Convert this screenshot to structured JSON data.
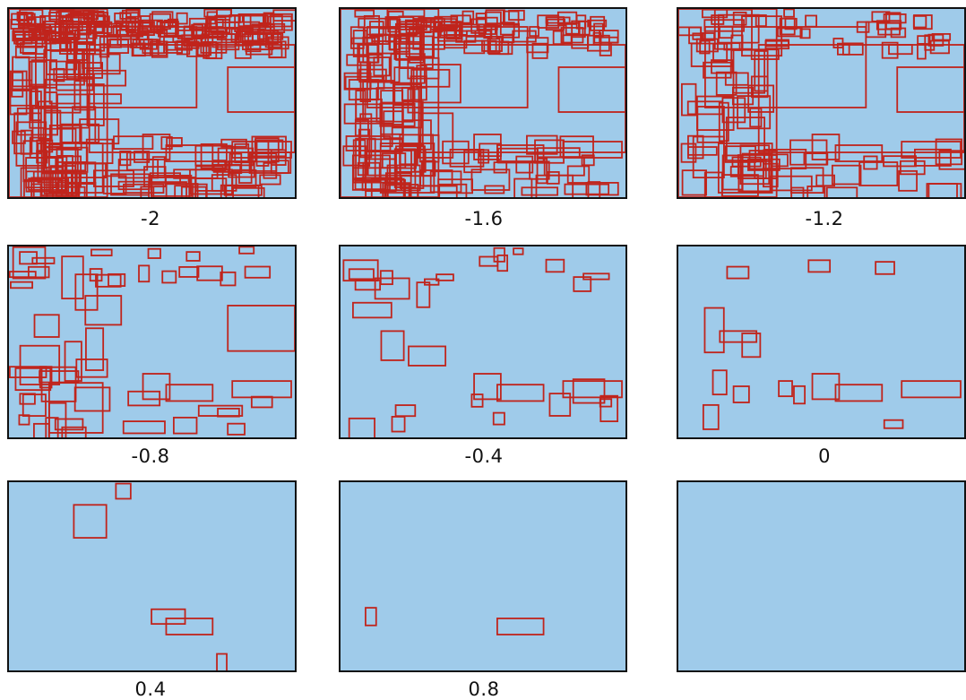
{
  "panels": [
    {
      "label": "-2",
      "density": 5
    },
    {
      "label": "-1.6",
      "density": 4
    },
    {
      "label": "-1.2",
      "density": 3
    },
    {
      "label": "-0.8",
      "density": 2
    },
    {
      "label": "-0.4",
      "density": 1.5
    },
    {
      "label": "0",
      "density": 1
    },
    {
      "label": "0.4",
      "density": 0.6
    },
    {
      "label": "0.8",
      "density": 0.3
    },
    {
      "label": "",
      "density": 0
    }
  ],
  "colors": {
    "box": "#c0241c"
  },
  "scene": "street-scene-photo"
}
